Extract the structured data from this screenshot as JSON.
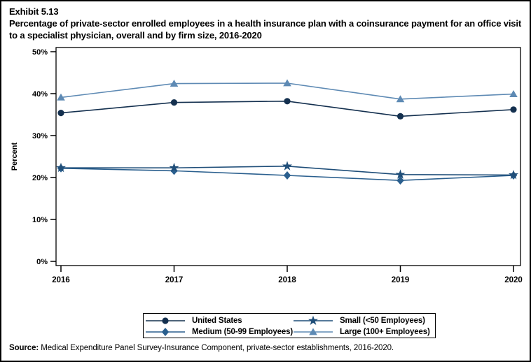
{
  "header": {
    "exhibit_label": "Exhibit 5.13",
    "title": "Percentage of private-sector enrolled employees in a health insurance plan with a coinsurance payment for an office visit to a specialist physician, overall and by firm size, 2016-2020"
  },
  "chart_data": {
    "type": "line",
    "x": [
      "2016",
      "2017",
      "2018",
      "2019",
      "2020"
    ],
    "series": [
      {
        "name": "United States",
        "marker": "circle",
        "color": "#14304f",
        "values": [
          35.4,
          37.9,
          38.2,
          34.6,
          36.2
        ]
      },
      {
        "name": "Small (<50 Employees)",
        "marker": "star",
        "color": "#1f4e79",
        "values": [
          22.3,
          22.3,
          22.7,
          20.7,
          20.6
        ]
      },
      {
        "name": "Medium (50-99 Employees)",
        "marker": "diamond",
        "color": "#2a5f8e",
        "values": [
          22.2,
          21.6,
          20.5,
          19.3,
          20.5
        ]
      },
      {
        "name": "Large (100+ Employees)",
        "marker": "triangle",
        "color": "#5e8ab4",
        "values": [
          39.1,
          42.4,
          42.5,
          38.7,
          39.9
        ]
      }
    ],
    "ylabel": "Percent",
    "ylim": [
      0,
      50
    ],
    "yticks": [
      "0%",
      "10%",
      "20%",
      "30%",
      "40%",
      "50%"
    ],
    "grid": false,
    "legend_position": "bottom",
    "legend_order": [
      0,
      2,
      1,
      3
    ]
  },
  "source": {
    "label": "Source:",
    "text": " Medical Expenditure Panel Survey-Insurance Component, private-sector establishments, 2016-2020."
  }
}
